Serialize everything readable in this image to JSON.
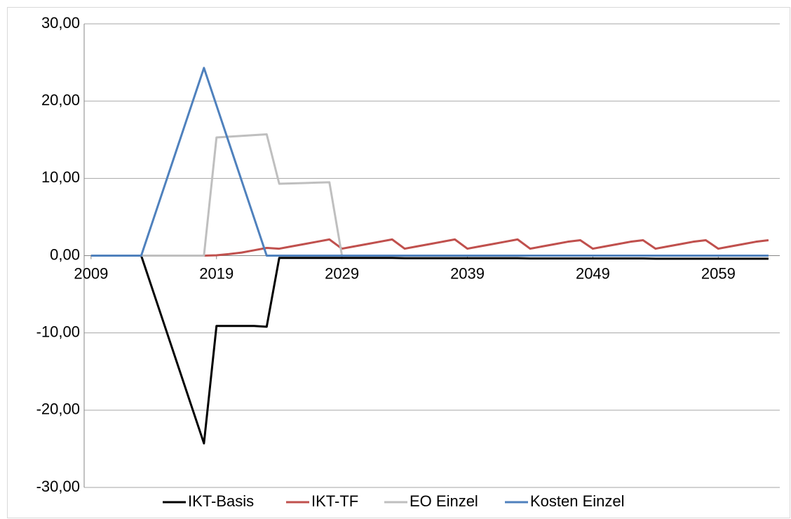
{
  "chart_data": {
    "type": "line",
    "x": [
      2009,
      2010,
      2011,
      2012,
      2013,
      2014,
      2015,
      2016,
      2017,
      2018,
      2019,
      2020,
      2021,
      2022,
      2023,
      2024,
      2025,
      2026,
      2027,
      2028,
      2029,
      2030,
      2031,
      2032,
      2033,
      2034,
      2035,
      2036,
      2037,
      2038,
      2039,
      2040,
      2041,
      2042,
      2043,
      2044,
      2045,
      2046,
      2047,
      2048,
      2049,
      2050,
      2051,
      2052,
      2053,
      2054,
      2055,
      2056,
      2057,
      2058,
      2059,
      2060,
      2061,
      2062,
      2063
    ],
    "series": [
      {
        "name": "IKT-Basis",
        "color": "#000000",
        "values": [
          0,
          0,
          0,
          0,
          0,
          -4.86,
          -9.72,
          -14.58,
          -19.44,
          -24.3,
          -9.1,
          -9.1,
          -9.1,
          -9.1,
          -9.2,
          -0.3,
          -0.3,
          -0.3,
          -0.3,
          -0.3,
          -0.3,
          -0.3,
          -0.3,
          -0.3,
          -0.3,
          -0.33,
          -0.33,
          -0.33,
          -0.33,
          -0.33,
          -0.33,
          -0.33,
          -0.33,
          -0.33,
          -0.33,
          -0.36,
          -0.36,
          -0.36,
          -0.36,
          -0.36,
          -0.36,
          -0.36,
          -0.36,
          -0.36,
          -0.36,
          -0.4,
          -0.4,
          -0.4,
          -0.4,
          -0.4,
          -0.4,
          -0.4,
          -0.4,
          -0.4,
          -0.4
        ]
      },
      {
        "name": "IKT-TF",
        "color": "#c0504d",
        "values": [
          0,
          0,
          0,
          0,
          0,
          0,
          0,
          0,
          0,
          0,
          0.05,
          0.2,
          0.4,
          0.7,
          1.0,
          0.9,
          1.2,
          1.5,
          1.8,
          2.1,
          0.9,
          1.2,
          1.5,
          1.8,
          2.1,
          0.9,
          1.2,
          1.5,
          1.8,
          2.1,
          0.9,
          1.2,
          1.5,
          1.8,
          2.1,
          0.9,
          1.2,
          1.5,
          1.8,
          2.0,
          0.9,
          1.2,
          1.5,
          1.8,
          2.0,
          0.9,
          1.2,
          1.5,
          1.8,
          2.0,
          0.9,
          1.2,
          1.5,
          1.8,
          2.0
        ]
      },
      {
        "name": "EO Einzel",
        "color": "#bfbfbf",
        "values": [
          0,
          0,
          0,
          0,
          0,
          0,
          0,
          0,
          0,
          0,
          15.3,
          15.4,
          15.5,
          15.6,
          15.7,
          9.3,
          9.35,
          9.4,
          9.45,
          9.5,
          0,
          0,
          0,
          0,
          0,
          0,
          0,
          0,
          0,
          0,
          0,
          0,
          0,
          0,
          0,
          0,
          0,
          0,
          0,
          0,
          0,
          0,
          0,
          0,
          0,
          0,
          0,
          0,
          0,
          0,
          0,
          0,
          0,
          0,
          0
        ]
      },
      {
        "name": "Kosten Einzel",
        "color": "#4f81bd",
        "values": [
          0,
          0,
          0,
          0,
          0,
          4.86,
          9.72,
          14.58,
          19.44,
          24.3,
          19.44,
          14.58,
          9.72,
          4.86,
          0,
          0,
          0,
          0,
          0,
          0,
          0,
          0,
          0,
          0,
          0,
          0,
          0,
          0,
          0,
          0,
          0,
          0,
          0,
          0,
          0,
          0,
          0,
          0,
          0,
          0,
          0,
          0,
          0,
          0,
          0,
          0,
          0,
          0,
          0,
          0,
          0,
          0,
          0,
          0,
          0
        ]
      }
    ],
    "xlim": [
      2008.45,
      2063.9
    ],
    "xticks": [
      2009,
      2019,
      2029,
      2039,
      2049,
      2059
    ],
    "ylim": [
      -30,
      30
    ],
    "yticks": [
      {
        "value": -30,
        "label": "-30,00"
      },
      {
        "value": -20,
        "label": "-20,00"
      },
      {
        "value": -10,
        "label": "-10,00"
      },
      {
        "value": 0,
        "label": "0,00"
      },
      {
        "value": 10,
        "label": "10,00"
      },
      {
        "value": 20,
        "label": "20,00"
      },
      {
        "value": 30,
        "label": "30,00"
      }
    ],
    "grid": true,
    "legend": "bottom"
  }
}
